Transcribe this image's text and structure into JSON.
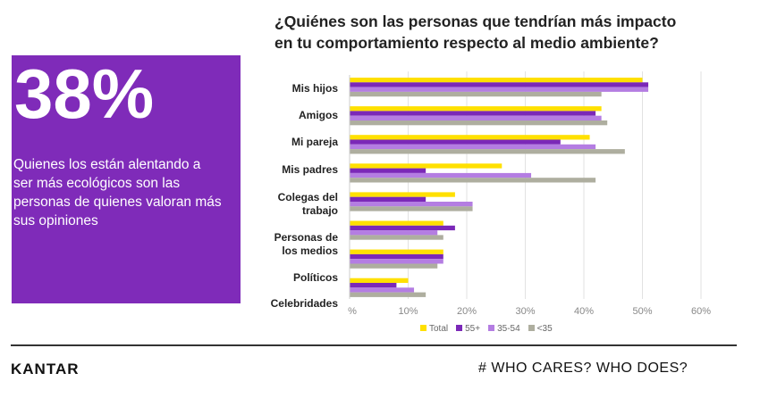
{
  "title_line1": "¿Quiénes son las personas que tendrían más impacto",
  "title_line2": "en tu comportamiento respecto al medio ambiente?",
  "highlight": {
    "value": "38%",
    "text": "Quienes los están alentando a ser más ecológicos son las personas de quienes valoran más sus opiniones"
  },
  "colors": {
    "Total": "#ffe000",
    "55+": "#7b28b8",
    "35-54": "#b47de2",
    "<35": "#aeae9f",
    "box": "#7f2bb9"
  },
  "chart_data": {
    "type": "bar",
    "orientation": "horizontal",
    "categories": [
      "Mis hijos",
      "Amigos",
      "Mi pareja",
      "Mis padres",
      "Colegas del trabajo",
      "Personas de los medios",
      "Políticos",
      "Celebridades"
    ],
    "series": [
      {
        "name": "Total",
        "values": [
          50,
          43,
          41,
          26,
          18,
          16,
          16,
          10
        ]
      },
      {
        "name": "55+",
        "values": [
          51,
          42,
          36,
          13,
          13,
          18,
          16,
          8
        ]
      },
      {
        "name": "35-54",
        "values": [
          51,
          43,
          42,
          31,
          21,
          15,
          16,
          11
        ]
      },
      {
        "name": "<35",
        "values": [
          43,
          44,
          47,
          42,
          21,
          16,
          15,
          13
        ]
      }
    ],
    "xlim": [
      0,
      60
    ],
    "tick_labels": [
      "%",
      "10%",
      "20%",
      "30%",
      "40%",
      "50%",
      "60%"
    ],
    "grid": true,
    "legend": "bottom"
  },
  "footer": {
    "logo": "KANTAR",
    "tagline": "# WHO CARES? WHO DOES?"
  }
}
